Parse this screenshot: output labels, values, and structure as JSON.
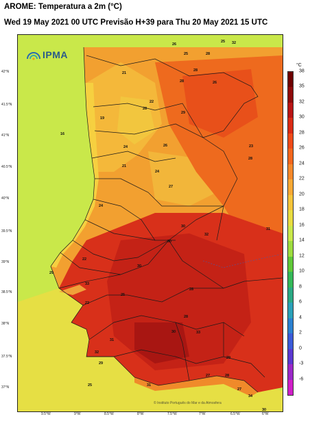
{
  "header": {
    "title": "AROME: Temperatura a 2m (°C)",
    "subtitle": "Wed 19 May 2021 00 UTC Previsão H+39 para Thu 20 May 2021 15 UTC"
  },
  "logo": {
    "text": "IPMA",
    "icon": "sun-arc-icon"
  },
  "credit": "© Instituto Português do Mar e da Atmosfera",
  "lat_labels": [
    "42°N",
    "41.5°N",
    "41°N",
    "40.5°N",
    "40°N",
    "39.5°N",
    "39°N",
    "38.5°N",
    "38°N",
    "37.5°N",
    "37°N"
  ],
  "lon_labels": [
    "9.5°W",
    "9°W",
    "8.5°W",
    "8°W",
    "7.5°W",
    "7°W",
    "6.5°W",
    "6°W"
  ],
  "colorbar": {
    "unit": "°C",
    "ticks": [
      "38",
      "35",
      "32",
      "30",
      "28",
      "26",
      "24",
      "22",
      "20",
      "18",
      "16",
      "14",
      "12",
      "10",
      "8",
      "6",
      "4",
      "2",
      "0",
      "-3",
      "-6"
    ],
    "colors": [
      "#6e0000",
      "#8e0a0a",
      "#b81414",
      "#d92a14",
      "#ee4a18",
      "#f2661c",
      "#f4882a",
      "#f6a834",
      "#f4c43a",
      "#e8dc40",
      "#c9e84a",
      "#9ddc3e",
      "#5fc838",
      "#34b858",
      "#2aa884",
      "#2aa0b8",
      "#2a80d0",
      "#3a5ad8",
      "#5a38d0",
      "#9a28c8",
      "#d01ec8"
    ]
  },
  "station_temps": [
    {
      "v": "26"
    },
    {
      "v": "25"
    },
    {
      "v": "28"
    },
    {
      "v": "25"
    },
    {
      "v": "32"
    },
    {
      "v": "28"
    },
    {
      "v": "26"
    },
    {
      "v": "21"
    },
    {
      "v": "28"
    },
    {
      "v": "22"
    },
    {
      "v": "28"
    },
    {
      "v": "29"
    },
    {
      "v": "19"
    },
    {
      "v": "16"
    },
    {
      "v": "24"
    },
    {
      "v": "26"
    },
    {
      "v": "21"
    },
    {
      "v": "24"
    },
    {
      "v": "27"
    },
    {
      "v": "23"
    },
    {
      "v": "28"
    },
    {
      "v": "24"
    },
    {
      "v": "30"
    },
    {
      "v": "30"
    },
    {
      "v": "32"
    },
    {
      "v": "31"
    },
    {
      "v": "29"
    },
    {
      "v": "33"
    },
    {
      "v": "22"
    },
    {
      "v": "28"
    },
    {
      "v": "31"
    },
    {
      "v": "32"
    },
    {
      "v": "30"
    },
    {
      "v": "33"
    },
    {
      "v": "31"
    },
    {
      "v": "25"
    },
    {
      "v": "29"
    },
    {
      "v": "27"
    },
    {
      "v": "28"
    },
    {
      "v": "27"
    },
    {
      "v": "34"
    },
    {
      "v": "30"
    },
    {
      "v": "30"
    },
    {
      "v": "25"
    },
    {
      "v": "28"
    },
    {
      "v": "29"
    },
    {
      "v": "22"
    }
  ]
}
